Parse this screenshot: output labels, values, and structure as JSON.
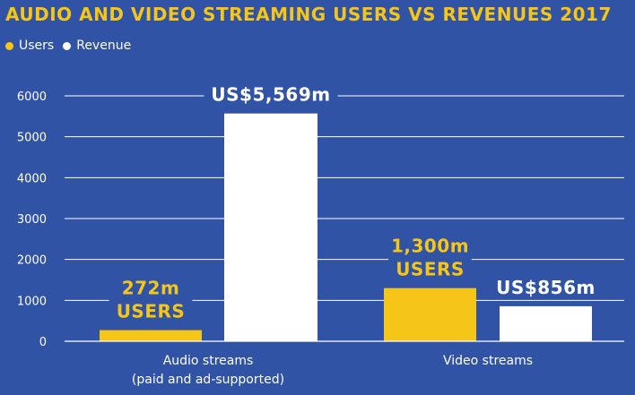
{
  "chart_data": {
    "type": "bar",
    "title": "AUDIO AND VIDEO STREAMING USERS VS REVENUES 2017",
    "categories": [
      "Audio streams\n(paid and ad-supported)",
      "Video streams"
    ],
    "series": [
      {
        "name": "Users",
        "color": "#f5c518",
        "values": [
          272,
          1300
        ]
      },
      {
        "name": "Revenue",
        "color": "#ffffff",
        "values": [
          5569,
          856
        ]
      }
    ],
    "annotations": [
      {
        "category": 0,
        "series": 0,
        "lines": [
          "272m",
          "USERS"
        ],
        "color": "#f5c518"
      },
      {
        "category": 0,
        "series": 1,
        "lines": [
          "US$5,569m"
        ],
        "color": "#ffffff"
      },
      {
        "category": 1,
        "series": 0,
        "lines": [
          "1,300m",
          "USERS"
        ],
        "color": "#f5c518"
      },
      {
        "category": 1,
        "series": 1,
        "lines": [
          "US$856m"
        ],
        "color": "#ffffff"
      }
    ],
    "yticks": [
      0,
      1000,
      2000,
      3000,
      4000,
      5000,
      6000
    ],
    "ylim": [
      0,
      6000
    ],
    "grid": true,
    "legend_position": "top-left",
    "background": "#3153a5"
  }
}
